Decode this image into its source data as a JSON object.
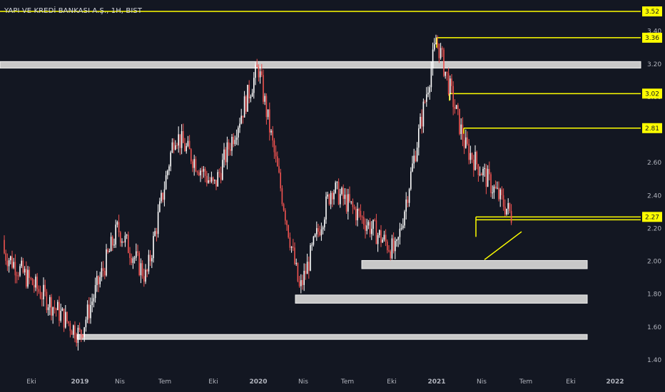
{
  "colors": {
    "background": "#131722",
    "up_candle": "#ffffff",
    "down_candle": "#ef5350",
    "level_line": "#ffff00",
    "zone_fill": "#c8c8c8",
    "tick_text": "#b2b5be"
  },
  "chart_data": {
    "type": "candlestick",
    "title": "YAPI VE KREDİ BANKASI A.Ş., 1H, BIST",
    "y_ticks": [
      "1.40",
      "1.60",
      "1.80",
      "2.00",
      "2.20",
      "2.40",
      "2.60",
      "2.80",
      "3.00",
      "3.20",
      "3.40"
    ],
    "ylim": [
      1.34,
      3.56
    ],
    "x_ticks": [
      {
        "label": "Eki",
        "bold": false
      },
      {
        "label": "2019",
        "bold": true
      },
      {
        "label": "Nis",
        "bold": false
      },
      {
        "label": "Tem",
        "bold": false
      },
      {
        "label": "Eki",
        "bold": false
      },
      {
        "label": "2020",
        "bold": true
      },
      {
        "label": "Nis",
        "bold": false
      },
      {
        "label": "Tem",
        "bold": false
      },
      {
        "label": "Eki",
        "bold": false
      },
      {
        "label": "2021",
        "bold": true
      },
      {
        "label": "Nis",
        "bold": false
      },
      {
        "label": "Tem",
        "bold": false
      },
      {
        "label": "Eki",
        "bold": false
      },
      {
        "label": "2022",
        "bold": true
      }
    ],
    "price_levels": [
      {
        "label": "3.52",
        "value": 3.52
      },
      {
        "label": "3.36",
        "value": 3.36
      },
      {
        "label": "3.02",
        "value": 3.02
      },
      {
        "label": "2.81",
        "value": 2.81
      },
      {
        "label": "2.27",
        "value": 2.27
      }
    ],
    "zones": [
      {
        "low": 3.175,
        "high": 3.215
      },
      {
        "low": 1.955,
        "high": 2.005
      },
      {
        "low": 1.745,
        "high": 1.795
      },
      {
        "low": 1.525,
        "high": 1.555
      }
    ],
    "trendline": {
      "from": 2.01,
      "to": 2.18
    },
    "series": [
      {
        "c": 2.05,
        "anchor": "Eki_2018"
      },
      {
        "c": 1.55,
        "anchor": "2019_start"
      },
      {
        "c": 2.2,
        "anchor": "Nis_2019"
      },
      {
        "c": 1.9,
        "anchor": "Haz_2019"
      },
      {
        "c": 2.78,
        "anchor": "Agu_2019"
      },
      {
        "c": 2.45,
        "anchor": "Eki_2019"
      },
      {
        "c": 3.18,
        "anchor": "2020_start"
      },
      {
        "c": 1.82,
        "anchor": "Nis_2020"
      },
      {
        "c": 2.45,
        "anchor": "Haz_2020"
      },
      {
        "c": 2.05,
        "anchor": "Eki_2020"
      },
      {
        "c": 3.35,
        "anchor": "2021_start"
      },
      {
        "c": 2.7,
        "anchor": "Mar_2021"
      },
      {
        "c": 2.27,
        "anchor": "May_2021"
      }
    ]
  }
}
